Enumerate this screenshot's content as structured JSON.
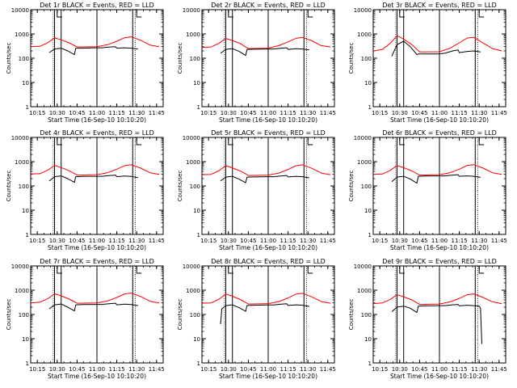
{
  "chart_data": [
    {
      "type": "line",
      "title": "Det 1r BLACK = Events, RED = LLD",
      "xlabel": "Start Time (16-Sep-10 10:10:20)",
      "ylabel": "Counts/sec",
      "xticks": [
        "10:15",
        "10:30",
        "10:45",
        "11:00",
        "11:15",
        "11:30",
        "11:45"
      ],
      "yticks": [
        "1",
        "10",
        "100",
        "1000",
        "10000"
      ],
      "yscale": "log",
      "ylim": [
        1,
        10000
      ],
      "xlim": [
        "10:10",
        "11:50"
      ],
      "series": [
        {
          "color": "#ff0000",
          "x": [
            "10:10",
            "10:17",
            "10:23",
            "10:28",
            "10:32",
            "10:39",
            "10:45",
            "11:00",
            "11:08",
            "11:15",
            "11:21",
            "11:26",
            "11:33",
            "11:40",
            "11:47"
          ],
          "y": [
            300,
            310,
            440,
            680,
            600,
            430,
            290,
            300,
            360,
            500,
            700,
            760,
            550,
            350,
            300
          ]
        },
        {
          "color": "#000000",
          "x": [
            "10:24",
            "10:28",
            "10:33",
            "10:38",
            "10:43",
            "10:44",
            "10:49",
            "10:59",
            "11:04",
            "11:10",
            "11:14",
            "11:15",
            "11:21",
            "11:26",
            "11:31"
          ],
          "y": [
            170,
            240,
            260,
            200,
            140,
            260,
            260,
            270,
            270,
            290,
            300,
            260,
            270,
            260,
            240
          ]
        }
      ],
      "verticals": [
        "10:28",
        "10:33",
        "11:00",
        "11:27"
      ],
      "dotted_verticals": [
        "10:27",
        "11:29"
      ],
      "markers": [
        "10:30",
        "11:30"
      ]
    },
    {
      "type": "line",
      "title": "Det 2r BLACK = Events, RED = LLD",
      "xlabel": "Start Time (16-Sep-10 10:10:20)",
      "ylabel": "Counts/sec",
      "xticks": [
        "10:15",
        "10:30",
        "10:45",
        "11:00",
        "11:15",
        "11:30",
        "11:45"
      ],
      "yticks": [
        "1",
        "10",
        "100",
        "1000",
        "10000"
      ],
      "yscale": "log",
      "ylim": [
        1,
        10000
      ],
      "xlim": [
        "10:10",
        "11:50"
      ],
      "series": [
        {
          "color": "#ff0000",
          "x": [
            "10:10",
            "10:17",
            "10:23",
            "10:28",
            "10:32",
            "10:39",
            "10:45",
            "11:00",
            "11:08",
            "11:15",
            "11:21",
            "11:26",
            "11:33",
            "11:40",
            "11:47"
          ],
          "y": [
            280,
            290,
            420,
            650,
            560,
            400,
            250,
            260,
            330,
            470,
            660,
            720,
            520,
            330,
            290
          ]
        },
        {
          "color": "#000000",
          "x": [
            "10:24",
            "10:28",
            "10:33",
            "10:38",
            "10:43",
            "10:44",
            "10:49",
            "10:59",
            "11:04",
            "11:10",
            "11:14",
            "11:15",
            "11:21",
            "11:26",
            "11:31"
          ],
          "y": [
            160,
            230,
            250,
            190,
            130,
            230,
            235,
            240,
            240,
            260,
            270,
            230,
            245,
            240,
            220
          ]
        }
      ],
      "verticals": [
        "10:28",
        "10:33",
        "11:00",
        "11:27"
      ],
      "dotted_verticals": [
        "10:27",
        "11:29"
      ],
      "markers": [
        "10:30",
        "11:30"
      ]
    },
    {
      "type": "line",
      "title": "Det 3r BLACK = Events, RED = LLD",
      "xlabel": "Start Time (16-Sep-10 10:10:20)",
      "ylabel": "Counts/sec",
      "xticks": [
        "10:15",
        "10:30",
        "10:45",
        "11:00",
        "11:15",
        "11:30",
        "11:45"
      ],
      "yticks": [
        "1",
        "10",
        "100",
        "1000",
        "10000"
      ],
      "yscale": "log",
      "ylim": [
        1,
        10000
      ],
      "xlim": [
        "10:10",
        "11:50"
      ],
      "series": [
        {
          "color": "#ff0000",
          "x": [
            "10:10",
            "10:17",
            "10:23",
            "10:28",
            "10:32",
            "10:39",
            "10:45",
            "11:00",
            "11:08",
            "11:15",
            "11:21",
            "11:26",
            "11:33",
            "11:40",
            "11:47"
          ],
          "y": [
            200,
            230,
            420,
            850,
            650,
            370,
            180,
            185,
            260,
            430,
            680,
            720,
            420,
            250,
            200
          ]
        },
        {
          "color": "#000000",
          "x": [
            "10:24",
            "10:28",
            "10:33",
            "10:38",
            "10:43",
            "10:44",
            "10:49",
            "10:59",
            "11:04",
            "11:10",
            "11:14",
            "11:15",
            "11:21",
            "11:26",
            "11:31"
          ],
          "y": [
            120,
            360,
            500,
            300,
            140,
            150,
            150,
            150,
            160,
            200,
            220,
            170,
            190,
            200,
            180
          ]
        }
      ],
      "verticals": [
        "10:28",
        "10:33",
        "11:00",
        "11:27"
      ],
      "dotted_verticals": [
        "10:27",
        "11:29"
      ],
      "markers": [
        "10:30",
        "11:30"
      ]
    },
    {
      "type": "line",
      "title": "Det 4r BLACK = Events, RED = LLD",
      "xlabel": "Start Time (16-Sep-10 10:10:20)",
      "ylabel": "Counts/sec",
      "xticks": [
        "10:15",
        "10:30",
        "10:45",
        "11:00",
        "11:15",
        "11:30",
        "11:45"
      ],
      "yticks": [
        "1",
        "10",
        "100",
        "1000",
        "10000"
      ],
      "yscale": "log",
      "ylim": [
        1,
        10000
      ],
      "xlim": [
        "10:10",
        "11:50"
      ],
      "series": [
        {
          "color": "#ff0000",
          "x": [
            "10:10",
            "10:17",
            "10:23",
            "10:28",
            "10:32",
            "10:39",
            "10:45",
            "11:00",
            "11:08",
            "11:15",
            "11:21",
            "11:26",
            "11:33",
            "11:40",
            "11:47"
          ],
          "y": [
            310,
            320,
            450,
            700,
            600,
            420,
            280,
            290,
            350,
            490,
            690,
            740,
            540,
            350,
            300
          ]
        },
        {
          "color": "#000000",
          "x": [
            "10:24",
            "10:28",
            "10:33",
            "10:38",
            "10:43",
            "10:44",
            "10:49",
            "10:59",
            "11:04",
            "11:10",
            "11:14",
            "11:15",
            "11:21",
            "11:26",
            "11:31"
          ],
          "y": [
            160,
            240,
            260,
            200,
            140,
            240,
            245,
            250,
            250,
            270,
            280,
            240,
            255,
            245,
            220
          ]
        }
      ],
      "verticals": [
        "10:28",
        "10:33",
        "11:00",
        "11:27"
      ],
      "dotted_verticals": [
        "10:27",
        "11:29"
      ],
      "markers": [
        "10:30",
        "11:30"
      ]
    },
    {
      "type": "line",
      "title": "Det 5r BLACK = Events, RED = LLD",
      "xlabel": "Start Time (16-Sep-10 10:10:20)",
      "ylabel": "Counts/sec",
      "xticks": [
        "10:15",
        "10:30",
        "10:45",
        "11:00",
        "11:15",
        "11:30",
        "11:45"
      ],
      "yticks": [
        "1",
        "10",
        "100",
        "1000",
        "10000"
      ],
      "yscale": "log",
      "ylim": [
        1,
        10000
      ],
      "xlim": [
        "10:10",
        "11:50"
      ],
      "series": [
        {
          "color": "#ff0000",
          "x": [
            "10:10",
            "10:17",
            "10:23",
            "10:28",
            "10:32",
            "10:39",
            "10:45",
            "11:00",
            "11:08",
            "11:15",
            "11:21",
            "11:26",
            "11:33",
            "11:40",
            "11:47"
          ],
          "y": [
            290,
            300,
            430,
            680,
            580,
            410,
            270,
            280,
            340,
            480,
            680,
            740,
            530,
            340,
            290
          ]
        },
        {
          "color": "#000000",
          "x": [
            "10:24",
            "10:28",
            "10:33",
            "10:38",
            "10:43",
            "10:44",
            "10:49",
            "10:59",
            "11:04",
            "11:10",
            "11:14",
            "11:15",
            "11:21",
            "11:26",
            "11:31"
          ],
          "y": [
            160,
            230,
            250,
            190,
            135,
            230,
            235,
            240,
            240,
            260,
            270,
            235,
            250,
            240,
            215
          ]
        }
      ],
      "verticals": [
        "10:28",
        "10:33",
        "11:00",
        "11:27"
      ],
      "dotted_verticals": [
        "10:27",
        "11:29"
      ],
      "markers": [
        "10:30",
        "11:30"
      ]
    },
    {
      "type": "line",
      "title": "Det 6r BLACK = Events, RED = LLD",
      "xlabel": "Start Time (16-Sep-10 10:10:20)",
      "ylabel": "Counts/sec",
      "xticks": [
        "10:15",
        "10:30",
        "10:45",
        "11:00",
        "11:15",
        "11:30",
        "11:45"
      ],
      "yticks": [
        "1",
        "10",
        "100",
        "1000",
        "10000"
      ],
      "yscale": "log",
      "ylim": [
        1,
        10000
      ],
      "xlim": [
        "10:10",
        "11:50"
      ],
      "series": [
        {
          "color": "#ff0000",
          "x": [
            "10:10",
            "10:17",
            "10:23",
            "10:28",
            "10:32",
            "10:39",
            "10:45",
            "11:00",
            "11:08",
            "11:15",
            "11:21",
            "11:26",
            "11:33",
            "11:40",
            "11:47"
          ],
          "y": [
            300,
            310,
            440,
            690,
            590,
            420,
            280,
            290,
            350,
            490,
            700,
            750,
            540,
            350,
            300
          ]
        },
        {
          "color": "#000000",
          "x": [
            "10:24",
            "10:28",
            "10:33",
            "10:38",
            "10:43",
            "10:44",
            "10:49",
            "10:59",
            "11:04",
            "11:10",
            "11:14",
            "11:15",
            "11:21",
            "11:26",
            "11:31"
          ],
          "y": [
            150,
            230,
            250,
            190,
            130,
            250,
            255,
            260,
            260,
            280,
            290,
            250,
            260,
            250,
            225
          ]
        }
      ],
      "verticals": [
        "10:28",
        "10:33",
        "11:00",
        "11:27"
      ],
      "dotted_verticals": [
        "10:27",
        "11:29"
      ],
      "markers": [
        "10:30",
        "11:30"
      ]
    },
    {
      "type": "line",
      "title": "Det 7r BLACK = Events, RED = LLD",
      "xlabel": "Start Time (16-Sep-10 10:10:20)",
      "ylabel": "Counts/sec",
      "xticks": [
        "10:15",
        "10:30",
        "10:45",
        "11:00",
        "11:15",
        "11:30",
        "11:45"
      ],
      "yticks": [
        "1",
        "10",
        "100",
        "1000",
        "10000"
      ],
      "yscale": "log",
      "ylim": [
        1,
        10000
      ],
      "xlim": [
        "10:10",
        "11:50"
      ],
      "series": [
        {
          "color": "#ff0000",
          "x": [
            "10:10",
            "10:17",
            "10:23",
            "10:28",
            "10:32",
            "10:39",
            "10:45",
            "11:00",
            "11:08",
            "11:15",
            "11:21",
            "11:26",
            "11:33",
            "11:40",
            "11:47"
          ],
          "y": [
            300,
            320,
            450,
            700,
            610,
            430,
            290,
            300,
            360,
            500,
            710,
            760,
            550,
            350,
            300
          ]
        },
        {
          "color": "#000000",
          "x": [
            "10:24",
            "10:28",
            "10:33",
            "10:38",
            "10:43",
            "10:44",
            "10:49",
            "10:59",
            "11:04",
            "11:10",
            "11:14",
            "11:15",
            "11:21",
            "11:26",
            "11:31"
          ],
          "y": [
            170,
            250,
            270,
            200,
            140,
            250,
            255,
            260,
            260,
            280,
            290,
            250,
            265,
            255,
            230
          ]
        }
      ],
      "verticals": [
        "10:28",
        "10:33",
        "11:00",
        "11:27"
      ],
      "dotted_verticals": [
        "10:27",
        "11:29"
      ],
      "markers": [
        "10:30",
        "11:30"
      ]
    },
    {
      "type": "line",
      "title": "Det 8r BLACK = Events, RED = LLD",
      "xlabel": "Start Time (16-Sep-10 10:10:20)",
      "ylabel": "Counts/sec",
      "xticks": [
        "10:15",
        "10:30",
        "10:45",
        "11:00",
        "11:15",
        "11:30",
        "11:45"
      ],
      "yticks": [
        "1",
        "10",
        "100",
        "1000",
        "10000"
      ],
      "yscale": "log",
      "ylim": [
        1,
        10000
      ],
      "xlim": [
        "10:10",
        "11:50"
      ],
      "series": [
        {
          "color": "#ff0000",
          "x": [
            "10:10",
            "10:17",
            "10:23",
            "10:28",
            "10:32",
            "10:39",
            "10:45",
            "11:00",
            "11:08",
            "11:15",
            "11:21",
            "11:26",
            "11:33",
            "11:40",
            "11:47"
          ],
          "y": [
            290,
            300,
            430,
            690,
            590,
            410,
            270,
            280,
            340,
            480,
            690,
            740,
            530,
            340,
            290
          ]
        },
        {
          "color": "#000000",
          "x": [
            "10:24",
            "10:25",
            "10:28",
            "10:33",
            "10:38",
            "10:43",
            "10:44",
            "10:49",
            "10:59",
            "11:04",
            "11:10",
            "11:14",
            "11:15",
            "11:21",
            "11:26",
            "11:31"
          ],
          "y": [
            40,
            170,
            230,
            250,
            190,
            135,
            235,
            240,
            245,
            245,
            265,
            275,
            235,
            250,
            240,
            215
          ]
        }
      ],
      "verticals": [
        "10:28",
        "10:33",
        "11:00",
        "11:27"
      ],
      "dotted_verticals": [
        "10:27",
        "11:29"
      ],
      "markers": [
        "10:30",
        "11:30"
      ]
    },
    {
      "type": "line",
      "title": "Det 9r BLACK = Events, RED = LLD",
      "xlabel": "Start Time (16-Sep-10 10:10:20)",
      "ylabel": "Counts/sec",
      "xticks": [
        "10:15",
        "10:30",
        "10:45",
        "11:00",
        "11:15",
        "11:30",
        "11:45"
      ],
      "yticks": [
        "1",
        "10",
        "100",
        "1000",
        "10000"
      ],
      "yscale": "log",
      "ylim": [
        1,
        10000
      ],
      "xlim": [
        "10:10",
        "11:50"
      ],
      "series": [
        {
          "color": "#ff0000",
          "x": [
            "10:10",
            "10:17",
            "10:23",
            "10:28",
            "10:32",
            "10:39",
            "10:45",
            "11:00",
            "11:08",
            "11:15",
            "11:21",
            "11:26",
            "11:33",
            "11:40",
            "11:47"
          ],
          "y": [
            280,
            300,
            420,
            650,
            560,
            400,
            260,
            270,
            330,
            460,
            650,
            700,
            500,
            330,
            280
          ]
        },
        {
          "color": "#000000",
          "x": [
            "10:24",
            "10:28",
            "10:33",
            "10:38",
            "10:43",
            "10:44",
            "10:49",
            "10:59",
            "11:04",
            "11:10",
            "11:14",
            "11:15",
            "11:21",
            "11:26",
            "11:30",
            "11:31",
            "11:32"
          ],
          "y": [
            130,
            200,
            220,
            180,
            120,
            220,
            225,
            230,
            230,
            250,
            260,
            225,
            240,
            230,
            220,
            180,
            6
          ]
        }
      ],
      "verticals": [
        "10:28",
        "10:33",
        "11:00",
        "11:27"
      ],
      "dotted_verticals": [
        "10:27",
        "11:29"
      ],
      "markers": [
        "10:30",
        "11:30"
      ]
    }
  ]
}
